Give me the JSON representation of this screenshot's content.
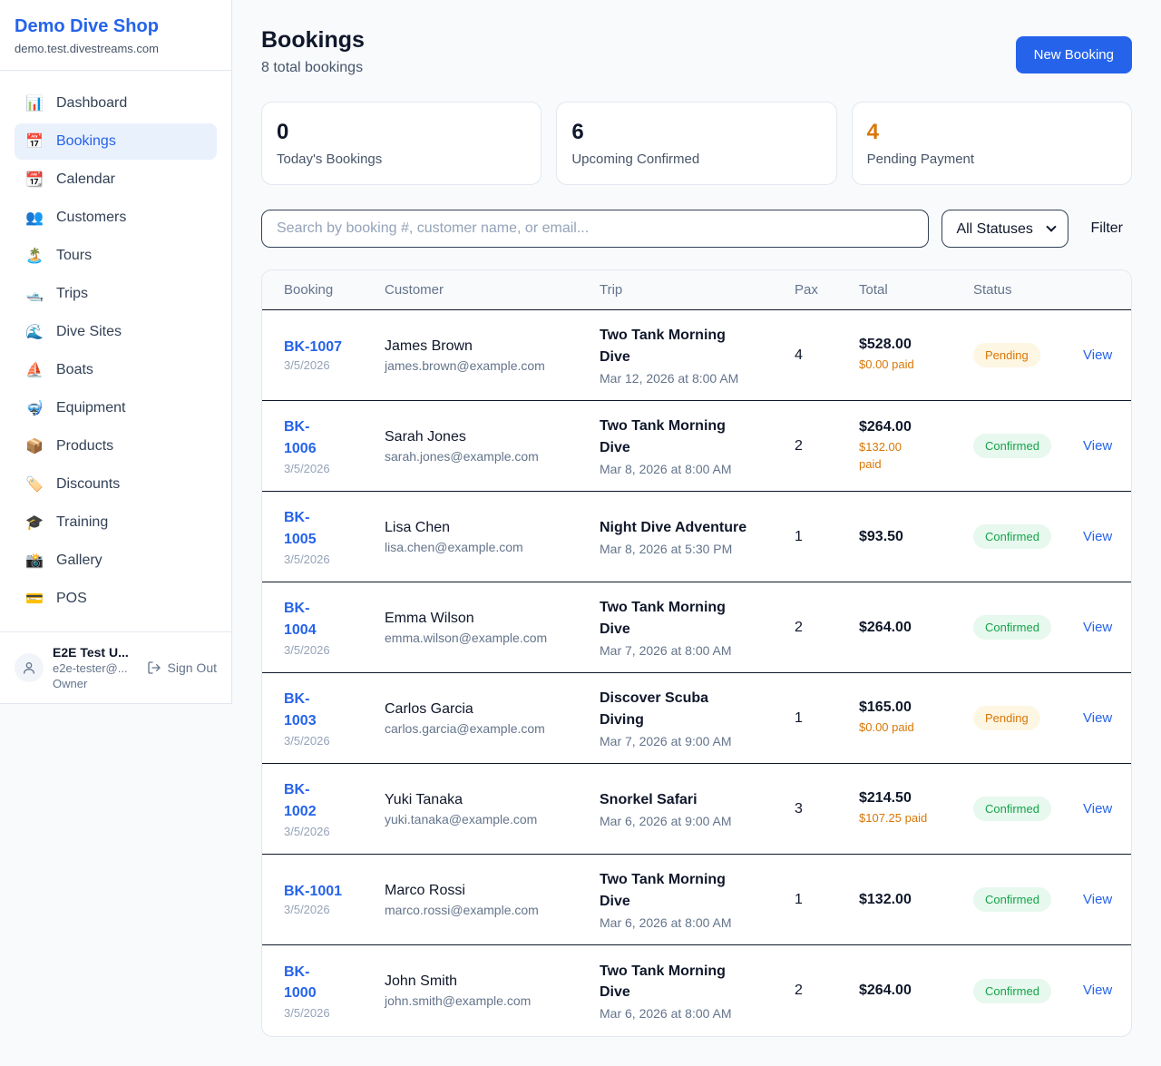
{
  "sidebar": {
    "shop_name": "Demo Dive Shop",
    "shop_domain": "demo.test.divestreams.com",
    "items": [
      {
        "icon": "📊",
        "icon_name": "bar-chart-icon",
        "label": "Dashboard",
        "active": false
      },
      {
        "icon": "📅",
        "icon_name": "calendar-icon",
        "label": "Bookings",
        "active": true
      },
      {
        "icon": "📆",
        "icon_name": "tear-calendar-icon",
        "label": "Calendar",
        "active": false
      },
      {
        "icon": "👥",
        "icon_name": "people-icon",
        "label": "Customers",
        "active": false
      },
      {
        "icon": "🏝️",
        "icon_name": "island-icon",
        "label": "Tours",
        "active": false
      },
      {
        "icon": "🛥️",
        "icon_name": "motorboat-icon",
        "label": "Trips",
        "active": false
      },
      {
        "icon": "🌊",
        "icon_name": "wave-icon",
        "label": "Dive Sites",
        "active": false
      },
      {
        "icon": "⛵",
        "icon_name": "sailboat-icon",
        "label": "Boats",
        "active": false
      },
      {
        "icon": "🤿",
        "icon_name": "diving-mask-icon",
        "label": "Equipment",
        "active": false
      },
      {
        "icon": "📦",
        "icon_name": "package-icon",
        "label": "Products",
        "active": false
      },
      {
        "icon": "🏷️",
        "icon_name": "tag-icon",
        "label": "Discounts",
        "active": false
      },
      {
        "icon": "🎓",
        "icon_name": "graduation-cap-icon",
        "label": "Training",
        "active": false
      },
      {
        "icon": "📸",
        "icon_name": "camera-icon",
        "label": "Gallery",
        "active": false
      },
      {
        "icon": "💳",
        "icon_name": "credit-card-icon",
        "label": "POS",
        "active": false
      }
    ],
    "user": {
      "name": "E2E Test U...",
      "email": "e2e-tester@...",
      "role": "Owner",
      "sign_out_label": "Sign Out"
    }
  },
  "header": {
    "title": "Bookings",
    "subtitle": "8 total bookings",
    "new_booking_label": "New Booking"
  },
  "stats": [
    {
      "value": "0",
      "label": "Today's Bookings",
      "color": "#0f172a"
    },
    {
      "value": "6",
      "label": "Upcoming Confirmed",
      "color": "#0f172a"
    },
    {
      "value": "4",
      "label": "Pending Payment",
      "color": "#d97706"
    }
  ],
  "filters": {
    "search_placeholder": "Search by booking #, customer name, or email...",
    "status_selected": "All Statuses",
    "filter_label": "Filter"
  },
  "table": {
    "columns": [
      "Booking",
      "Customer",
      "Trip",
      "Pax",
      "Total",
      "Status"
    ],
    "view_label": "View",
    "rows": [
      {
        "id": "BK-1007",
        "id_wrap": false,
        "date": "3/5/2026",
        "customer": "James Brown",
        "email": "james.brown@example.com",
        "trip": "Two Tank Morning Dive",
        "trip_nowrap": false,
        "trip_time": "Mar 12, 2026 at 8:00 AM",
        "pax": "4",
        "total": "$528.00",
        "paid": "$0.00 paid",
        "paid_wrap": false,
        "status": "Pending"
      },
      {
        "id": "BK-1006",
        "id_wrap": true,
        "date": "3/5/2026",
        "customer": "Sarah Jones",
        "email": "sarah.jones@example.com",
        "trip": "Two Tank Morning Dive",
        "trip_nowrap": false,
        "trip_time": "Mar 8, 2026 at 8:00 AM",
        "pax": "2",
        "total": "$264.00",
        "paid": "$132.00 paid",
        "paid_wrap": true,
        "status": "Confirmed"
      },
      {
        "id": "BK-1005",
        "id_wrap": true,
        "date": "3/5/2026",
        "customer": "Lisa Chen",
        "email": "lisa.chen@example.com",
        "trip": "Night Dive Adventure",
        "trip_nowrap": true,
        "trip_time": "Mar 8, 2026 at 5:30 PM",
        "pax": "1",
        "total": "$93.50",
        "paid": null,
        "paid_wrap": false,
        "status": "Confirmed"
      },
      {
        "id": "BK-1004",
        "id_wrap": true,
        "date": "3/5/2026",
        "customer": "Emma Wilson",
        "email": "emma.wilson@example.com",
        "trip": "Two Tank Morning Dive",
        "trip_nowrap": false,
        "trip_time": "Mar 7, 2026 at 8:00 AM",
        "pax": "2",
        "total": "$264.00",
        "paid": null,
        "paid_wrap": false,
        "status": "Confirmed"
      },
      {
        "id": "BK-1003",
        "id_wrap": true,
        "date": "3/5/2026",
        "customer": "Carlos Garcia",
        "email": "carlos.garcia@example.com",
        "trip": "Discover Scuba Diving",
        "trip_nowrap": false,
        "trip_time": "Mar 7, 2026 at 9:00 AM",
        "pax": "1",
        "total": "$165.00",
        "paid": "$0.00 paid",
        "paid_wrap": false,
        "status": "Pending"
      },
      {
        "id": "BK-1002",
        "id_wrap": true,
        "date": "3/5/2026",
        "customer": "Yuki Tanaka",
        "email": "yuki.tanaka@example.com",
        "trip": "Snorkel Safari",
        "trip_nowrap": true,
        "trip_time": "Mar 6, 2026 at 9:00 AM",
        "pax": "3",
        "total": "$214.50",
        "paid": "$107.25 paid",
        "paid_wrap": false,
        "status": "Confirmed"
      },
      {
        "id": "BK-1001",
        "id_wrap": false,
        "date": "3/5/2026",
        "customer": "Marco Rossi",
        "email": "marco.rossi@example.com",
        "trip": "Two Tank Morning Dive",
        "trip_nowrap": false,
        "trip_time": "Mar 6, 2026 at 8:00 AM",
        "pax": "1",
        "total": "$132.00",
        "paid": null,
        "paid_wrap": false,
        "status": "Confirmed"
      },
      {
        "id": "BK-1000",
        "id_wrap": true,
        "date": "3/5/2026",
        "customer": "John Smith",
        "email": "john.smith@example.com",
        "trip": "Two Tank Morning Dive",
        "trip_nowrap": false,
        "trip_time": "Mar 6, 2026 at 8:00 AM",
        "pax": "2",
        "total": "$264.00",
        "paid": null,
        "paid_wrap": false,
        "status": "Confirmed"
      }
    ]
  },
  "colors": {
    "accent_blue": "#2563eb",
    "paid_orange": "#d97706",
    "badge": {
      "Pending": {
        "bg": "#fdf6e3",
        "fg": "#d97706"
      },
      "Confirmed": {
        "bg": "#e7f8ee",
        "fg": "#16a34a"
      }
    }
  }
}
